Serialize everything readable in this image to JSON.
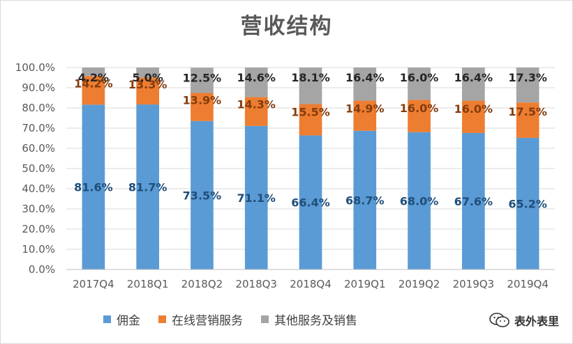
{
  "chart_data": {
    "type": "bar",
    "stacked": true,
    "title": "营收结构",
    "categories": [
      "2017Q4",
      "2018Q1",
      "2018Q2",
      "2018Q3",
      "2018Q4",
      "2019Q1",
      "2019Q2",
      "2019Q3",
      "2019Q4"
    ],
    "series": [
      {
        "name": "佣金",
        "color": "#5b9bd5",
        "label_color": "#1f4e79",
        "values": [
          81.6,
          81.7,
          73.5,
          71.1,
          66.4,
          68.7,
          68.0,
          67.6,
          65.2
        ]
      },
      {
        "name": "在线营销服务",
        "color": "#ed7d31",
        "label_color": "#843c0c",
        "values": [
          14.2,
          13.3,
          13.9,
          14.3,
          15.5,
          14.9,
          16.0,
          16.0,
          17.5
        ]
      },
      {
        "name": "其他服务及销售",
        "color": "#a5a5a5",
        "label_color": "#262626",
        "values": [
          4.2,
          5.0,
          12.5,
          14.6,
          18.1,
          16.4,
          16.0,
          16.4,
          17.3
        ]
      }
    ],
    "ylim": [
      0,
      100
    ],
    "yticks": [
      "0.0%",
      "10.0%",
      "20.0%",
      "30.0%",
      "40.0%",
      "50.0%",
      "60.0%",
      "70.0%",
      "80.0%",
      "90.0%",
      "100.0%"
    ],
    "grid": true,
    "legend_position": "bottom",
    "xlabel": "",
    "ylabel": ""
  },
  "watermark": {
    "text": "表外表里",
    "icon": "wechat-icon"
  }
}
